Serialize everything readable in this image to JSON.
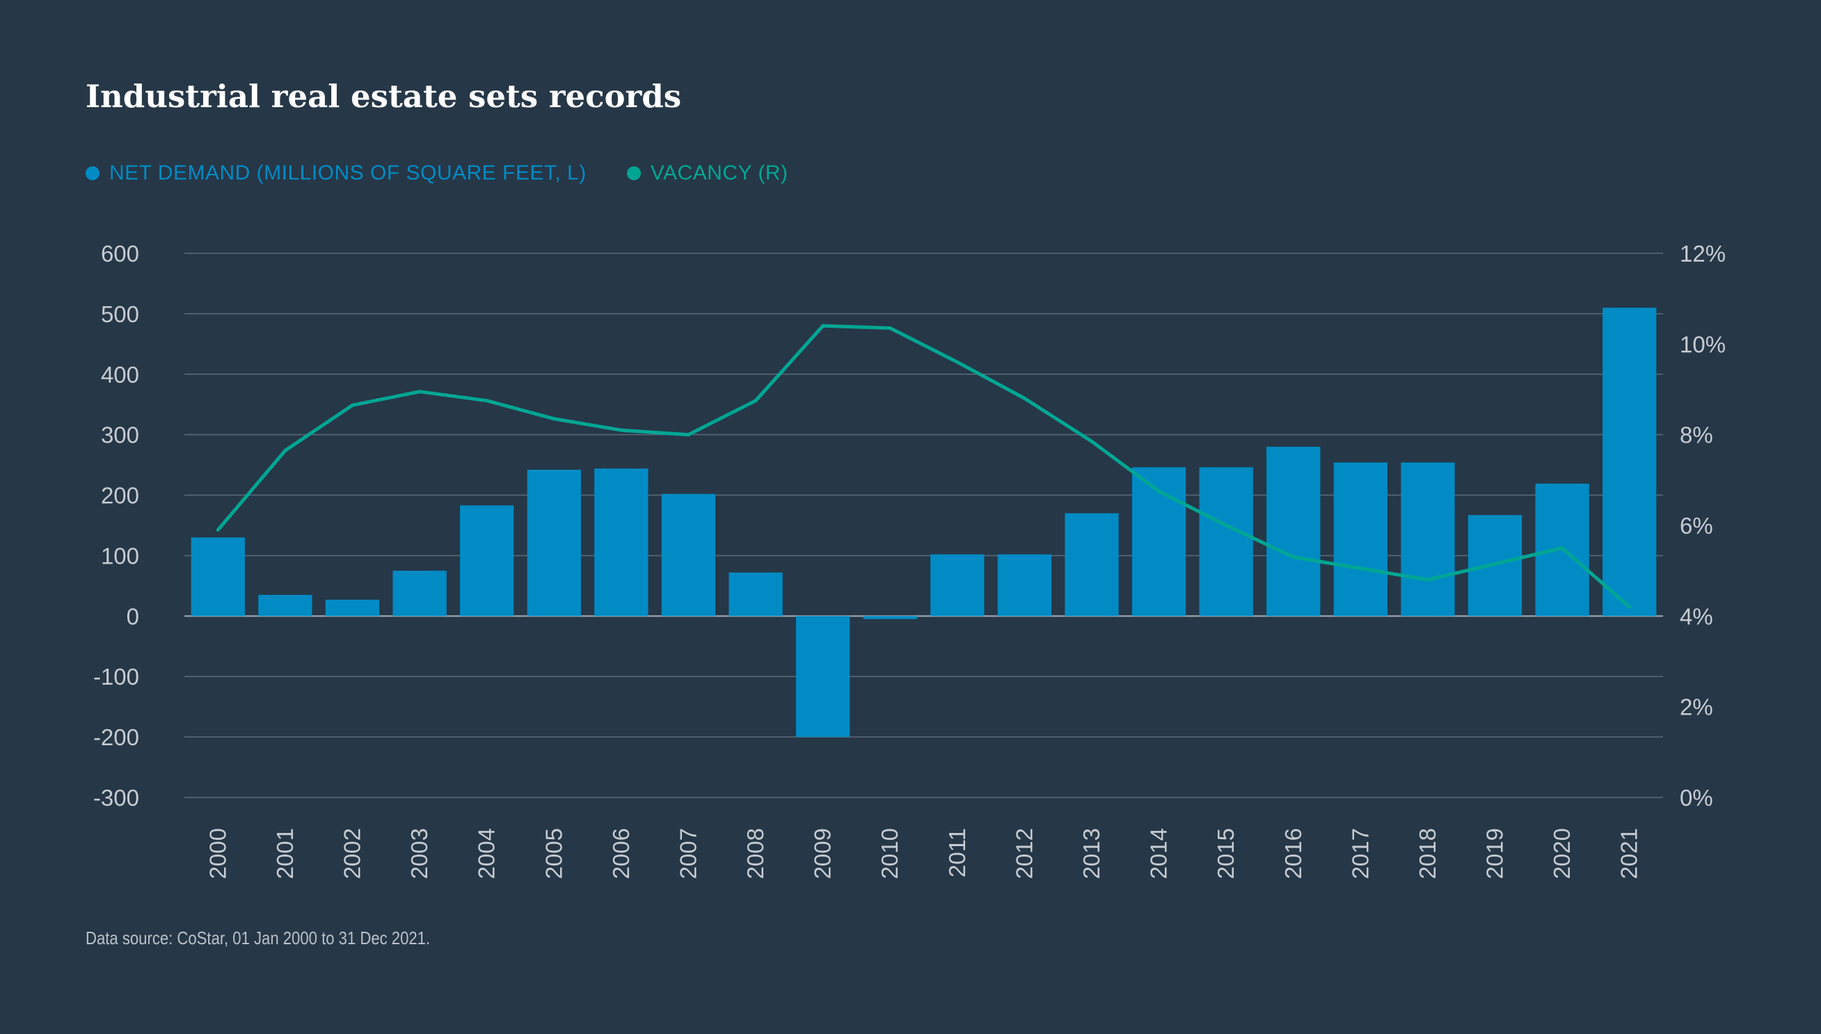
{
  "title": "Industrial real estate sets records",
  "legend": [
    {
      "label": "NET DEMAND (MILLIONS OF SQUARE FEET, L)",
      "color": "#008bc4"
    },
    {
      "label": "VACANCY (R)",
      "color": "#00a693"
    }
  ],
  "source": "Data source: CoStar, 01 Jan 2000 to 31 Dec 2021.",
  "chart_data": {
    "type": "bar+line",
    "title": "Industrial real estate sets records",
    "categories": [
      "2000",
      "2001",
      "2002",
      "2003",
      "2004",
      "2005",
      "2006",
      "2007",
      "2008",
      "2009",
      "2010",
      "2011",
      "2012",
      "2013",
      "2014",
      "2015",
      "2016",
      "2017",
      "2018",
      "2019",
      "2020",
      "2021"
    ],
    "series": [
      {
        "name": "NET DEMAND (MILLIONS OF SQUARE FEET, L)",
        "type": "bar",
        "axis": "left",
        "color": "#008bc4",
        "values": [
          130,
          35,
          27,
          75,
          183,
          242,
          244,
          202,
          72,
          -200,
          -5,
          102,
          102,
          170,
          246,
          246,
          280,
          254,
          254,
          167,
          219,
          510
        ]
      },
      {
        "name": "VACANCY (R)",
        "type": "line",
        "axis": "right",
        "color": "#00a693",
        "values": [
          5.9,
          7.65,
          8.65,
          8.95,
          8.75,
          8.35,
          8.1,
          8.0,
          8.75,
          10.4,
          10.35,
          9.6,
          8.8,
          7.85,
          6.75,
          6.0,
          5.3,
          5.05,
          4.8,
          5.15,
          5.5,
          4.2
        ]
      }
    ],
    "left_axis": {
      "ticks": [
        "600",
        "500",
        "400",
        "300",
        "200",
        "100",
        "0",
        "-100",
        "-200",
        "-300"
      ],
      "ylim": [
        -300,
        600
      ]
    },
    "right_axis": {
      "ticks": [
        "12%",
        "10%",
        "8%",
        "6%",
        "4%",
        "2%",
        "0%"
      ],
      "ylim": [
        0,
        12
      ]
    },
    "grid": true
  }
}
